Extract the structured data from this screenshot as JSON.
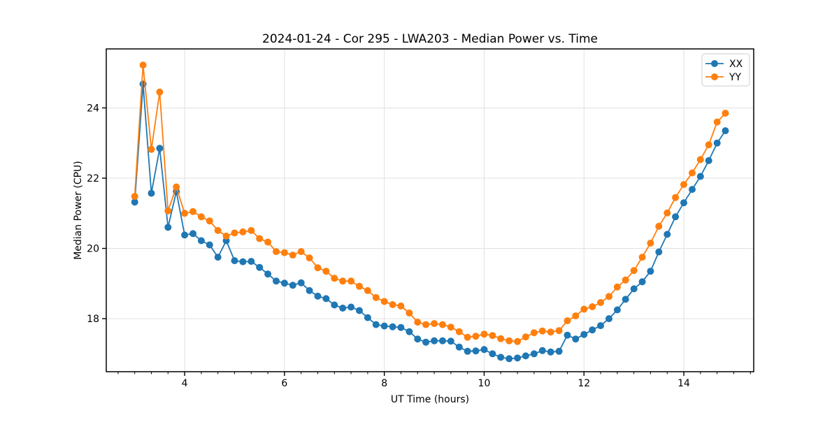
{
  "chart_data": {
    "type": "line",
    "title": "2024-01-24 - Cor 295 - LWA203 - Median Power vs. Time",
    "xlabel": "UT Time (hours)",
    "ylabel": "Median Power (CPU)",
    "xlim": [
      2.43,
      15.4
    ],
    "ylim": [
      16.49,
      25.68
    ],
    "xticks": [
      4,
      6,
      8,
      10,
      12,
      14
    ],
    "yticks": [
      18,
      20,
      22,
      24
    ],
    "minor_xtick_step": 0.3333,
    "grid": true,
    "grid_color": "#e0e0e0",
    "background": "#ffffff",
    "legend_position": "upper right",
    "marker": "circle",
    "x": [
      3.0,
      3.167,
      3.333,
      3.5,
      3.667,
      3.833,
      4.0,
      4.167,
      4.333,
      4.5,
      4.667,
      4.833,
      5.0,
      5.167,
      5.333,
      5.5,
      5.667,
      5.833,
      6.0,
      6.167,
      6.333,
      6.5,
      6.667,
      6.833,
      7.0,
      7.167,
      7.333,
      7.5,
      7.667,
      7.833,
      8.0,
      8.167,
      8.333,
      8.5,
      8.667,
      8.833,
      9.0,
      9.167,
      9.333,
      9.5,
      9.667,
      9.833,
      10.0,
      10.167,
      10.333,
      10.5,
      10.667,
      10.833,
      11.0,
      11.167,
      11.333,
      11.5,
      11.667,
      11.833,
      12.0,
      12.167,
      12.333,
      12.5,
      12.667,
      12.833,
      13.0,
      13.167,
      13.333,
      13.5,
      13.667,
      13.833,
      14.0,
      14.167,
      14.333,
      14.5,
      14.667,
      14.833
    ],
    "series": [
      {
        "name": "XX",
        "color": "#1f77b4",
        "values": [
          21.32,
          24.68,
          21.57,
          22.85,
          20.6,
          21.62,
          20.38,
          20.42,
          20.22,
          20.1,
          19.75,
          20.22,
          19.65,
          19.62,
          19.63,
          19.46,
          19.27,
          19.07,
          19.01,
          18.95,
          19.02,
          18.8,
          18.64,
          18.57,
          18.39,
          18.3,
          18.33,
          18.23,
          18.03,
          17.83,
          17.79,
          17.77,
          17.75,
          17.63,
          17.42,
          17.33,
          17.37,
          17.37,
          17.36,
          17.19,
          17.07,
          17.08,
          17.12,
          17.0,
          16.9,
          16.86,
          16.88,
          16.94,
          17.0,
          17.09,
          17.05,
          17.07,
          17.53,
          17.42,
          17.55,
          17.68,
          17.8,
          18.0,
          18.25,
          18.55,
          18.85,
          19.05,
          19.35,
          19.9,
          20.4,
          20.9,
          21.3,
          21.68,
          22.05,
          22.5,
          23.0,
          23.35
        ]
      },
      {
        "name": "YY",
        "color": "#ff7f0e",
        "values": [
          21.48,
          25.22,
          22.82,
          24.45,
          21.07,
          21.75,
          21.0,
          21.05,
          20.9,
          20.78,
          20.51,
          20.35,
          20.44,
          20.47,
          20.51,
          20.28,
          20.18,
          19.91,
          19.88,
          19.81,
          19.91,
          19.73,
          19.45,
          19.35,
          19.15,
          19.07,
          19.07,
          18.92,
          18.8,
          18.6,
          18.49,
          18.4,
          18.36,
          18.16,
          17.9,
          17.83,
          17.86,
          17.83,
          17.76,
          17.63,
          17.47,
          17.5,
          17.56,
          17.52,
          17.43,
          17.37,
          17.35,
          17.48,
          17.6,
          17.65,
          17.62,
          17.66,
          17.94,
          18.08,
          18.27,
          18.34,
          18.46,
          18.63,
          18.9,
          19.1,
          19.37,
          19.75,
          20.15,
          20.63,
          21.01,
          21.45,
          21.82,
          22.15,
          22.53,
          22.95,
          23.6,
          23.85
        ]
      }
    ]
  }
}
